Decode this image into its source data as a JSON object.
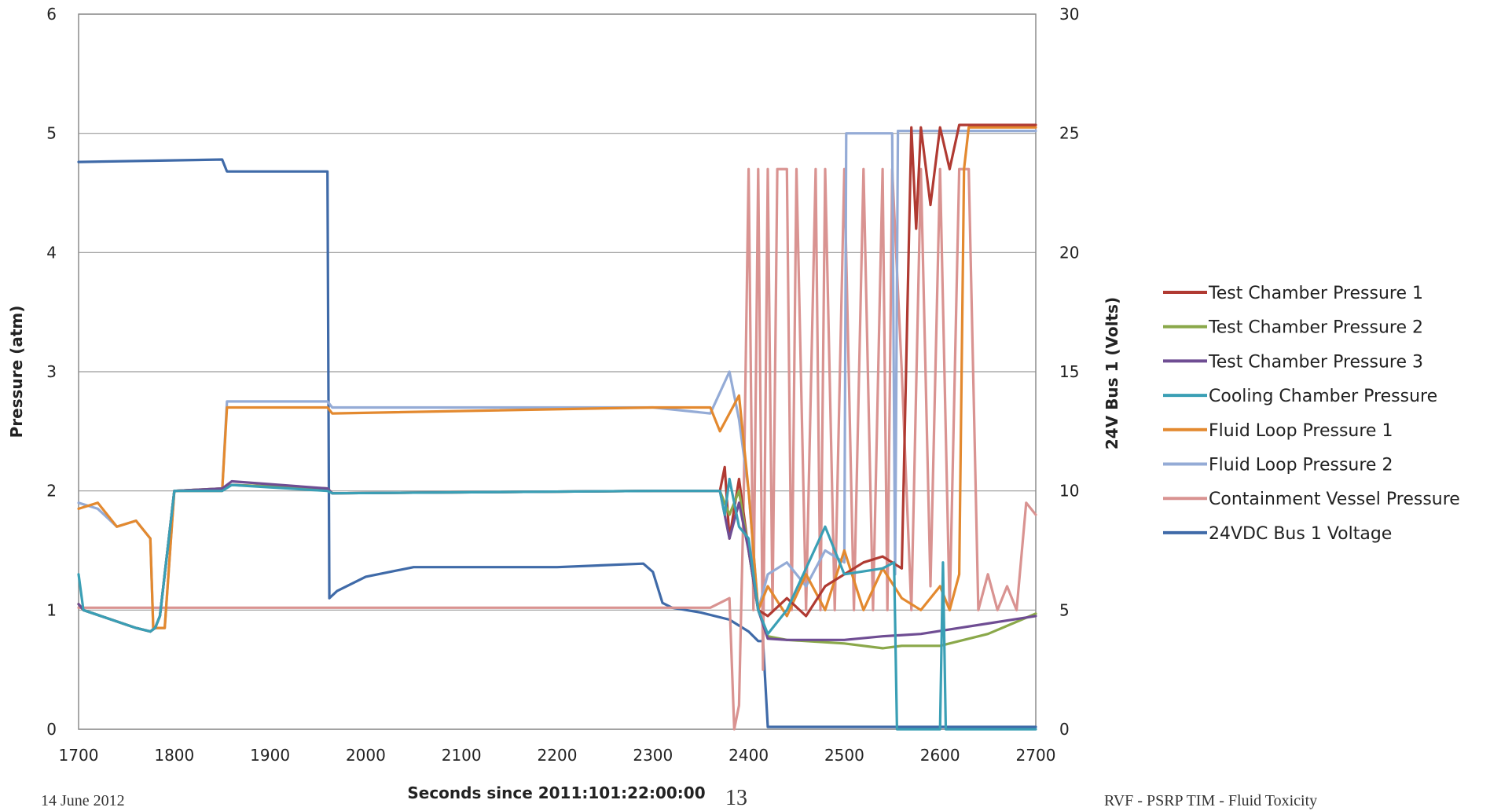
{
  "chart_data": {
    "type": "line",
    "xlabel": "Seconds since 2011:101:22:00:00",
    "ylabel": "Pressure (atm)",
    "y2label": "24V Bus 1 (Volts)",
    "xlim": [
      1700,
      2700
    ],
    "ylim": [
      0,
      6
    ],
    "y2lim": [
      0,
      30
    ],
    "xticks": [
      1700,
      1800,
      1900,
      2000,
      2100,
      2200,
      2300,
      2400,
      2500,
      2600,
      2700
    ],
    "yticks": [
      0,
      1,
      2,
      3,
      4,
      5,
      6
    ],
    "y2ticks": [
      0,
      5,
      10,
      15,
      20,
      25,
      30
    ],
    "grid": "horizontal",
    "legend_position": "right",
    "series": [
      {
        "name": "Test Chamber Pressure 1",
        "color": "#b03a32",
        "axis": "left",
        "x": [
          1700,
          1705,
          1760,
          1775,
          1780,
          1785,
          1800,
          1850,
          1860,
          1960,
          1965,
          2300,
          2370,
          2375,
          2380,
          2390,
          2400,
          2410,
          2420,
          2440,
          2460,
          2480,
          2500,
          2520,
          2540,
          2560,
          2570,
          2575,
          2580,
          2590,
          2600,
          2610,
          2620,
          2640,
          2700
        ],
        "y": [
          1.05,
          1.0,
          0.85,
          0.82,
          0.85,
          0.95,
          2.0,
          2.02,
          2.05,
          2.02,
          1.98,
          2.0,
          2.0,
          2.2,
          1.6,
          2.1,
          1.5,
          1.0,
          0.95,
          1.1,
          0.95,
          1.2,
          1.3,
          1.4,
          1.45,
          1.35,
          5.05,
          4.2,
          5.05,
          4.4,
          5.05,
          4.7,
          5.07,
          5.07,
          5.07
        ]
      },
      {
        "name": "Test Chamber Pressure 2",
        "color": "#8aa84a",
        "axis": "left",
        "x": [
          1700,
          1705,
          1760,
          1775,
          1780,
          1785,
          1800,
          1850,
          1860,
          1960,
          1965,
          2300,
          2370,
          2380,
          2390,
          2400,
          2410,
          2420,
          2440,
          2500,
          2540,
          2560,
          2600,
          2650,
          2700
        ],
        "y": [
          1.05,
          1.0,
          0.85,
          0.82,
          0.85,
          0.95,
          2.0,
          2.02,
          2.05,
          2.02,
          1.98,
          2.0,
          2.0,
          1.8,
          2.0,
          1.5,
          1.0,
          0.78,
          0.75,
          0.72,
          0.68,
          0.7,
          0.7,
          0.8,
          0.97
        ]
      },
      {
        "name": "Test Chamber Pressure 3",
        "color": "#6f4d93",
        "axis": "left",
        "x": [
          1700,
          1705,
          1760,
          1775,
          1780,
          1785,
          1800,
          1850,
          1860,
          1960,
          1965,
          2300,
          2370,
          2380,
          2390,
          2400,
          2410,
          2420,
          2440,
          2500,
          2540,
          2580,
          2620,
          2660,
          2700
        ],
        "y": [
          1.05,
          1.0,
          0.85,
          0.82,
          0.85,
          0.95,
          2.0,
          2.02,
          2.08,
          2.02,
          1.98,
          2.0,
          2.0,
          1.6,
          1.9,
          1.5,
          1.0,
          0.76,
          0.75,
          0.75,
          0.78,
          0.8,
          0.85,
          0.9,
          0.95
        ]
      },
      {
        "name": "Cooling Chamber Pressure",
        "color": "#3a9fb5",
        "axis": "left",
        "x": [
          1700,
          1705,
          1760,
          1775,
          1780,
          1785,
          1800,
          1850,
          1860,
          1960,
          1965,
          2300,
          2370,
          2375,
          2380,
          2390,
          2400,
          2410,
          2420,
          2440,
          2480,
          2500,
          2540,
          2552,
          2555,
          2560,
          2600,
          2603,
          2606,
          2610,
          2700
        ],
        "y": [
          1.3,
          1.0,
          0.85,
          0.82,
          0.85,
          0.95,
          2.0,
          2.0,
          2.05,
          2.0,
          1.98,
          2.0,
          2.0,
          1.8,
          2.1,
          1.7,
          1.6,
          1.0,
          0.8,
          1.0,
          1.7,
          1.3,
          1.35,
          1.4,
          0.0,
          0.0,
          0.0,
          1.4,
          0.0,
          0.0,
          0.0
        ]
      },
      {
        "name": "Fluid Loop Pressure 1",
        "color": "#e3892f",
        "axis": "left",
        "x": [
          1700,
          1720,
          1740,
          1760,
          1775,
          1778,
          1790,
          1800,
          1850,
          1855,
          1960,
          1965,
          2300,
          2360,
          2370,
          2390,
          2400,
          2410,
          2420,
          2440,
          2460,
          2480,
          2500,
          2520,
          2540,
          2560,
          2580,
          2600,
          2610,
          2620,
          2625,
          2630,
          2700
        ],
        "y": [
          1.85,
          1.9,
          1.7,
          1.75,
          1.6,
          0.85,
          0.85,
          2.0,
          2.0,
          2.7,
          2.7,
          2.65,
          2.7,
          2.7,
          2.5,
          2.8,
          2.0,
          1.0,
          1.2,
          0.95,
          1.3,
          1.0,
          1.5,
          1.0,
          1.35,
          1.1,
          1.0,
          1.2,
          1.0,
          1.3,
          4.7,
          5.05,
          5.05
        ]
      },
      {
        "name": "Fluid Loop Pressure 2",
        "color": "#94abd6",
        "axis": "left",
        "x": [
          1700,
          1720,
          1740,
          1760,
          1775,
          1778,
          1790,
          1800,
          1850,
          1855,
          1960,
          1965,
          2300,
          2360,
          2380,
          2390,
          2400,
          2410,
          2420,
          2440,
          2460,
          2480,
          2500,
          2502,
          2520,
          2550,
          2553,
          2556,
          2700
        ],
        "y": [
          1.9,
          1.85,
          1.7,
          1.75,
          1.6,
          0.85,
          0.85,
          2.0,
          2.0,
          2.75,
          2.75,
          2.7,
          2.7,
          2.65,
          3.0,
          2.6,
          2.0,
          1.0,
          1.3,
          1.4,
          1.2,
          1.5,
          1.4,
          5.0,
          5.0,
          5.0,
          1.3,
          5.02,
          5.02
        ]
      },
      {
        "name": "Containment Vessel Pressure",
        "color": "#d99391",
        "axis": "left",
        "x": [
          1700,
          2360,
          2380,
          2385,
          2390,
          2395,
          2400,
          2405,
          2410,
          2415,
          2420,
          2425,
          2430,
          2440,
          2445,
          2450,
          2460,
          2470,
          2475,
          2480,
          2490,
          2500,
          2510,
          2520,
          2530,
          2540,
          2545,
          2550,
          2560,
          2570,
          2580,
          2590,
          2600,
          2610,
          2620,
          2630,
          2640,
          2650,
          2660,
          2670,
          2680,
          2690,
          2700
        ],
        "y": [
          1.02,
          1.02,
          1.1,
          0.0,
          0.2,
          2.0,
          4.7,
          1.0,
          4.7,
          0.5,
          4.7,
          1.0,
          4.7,
          4.7,
          1.0,
          4.7,
          1.0,
          4.7,
          1.0,
          4.7,
          1.0,
          4.7,
          1.0,
          4.7,
          1.0,
          4.7,
          1.0,
          4.7,
          3.0,
          1.0,
          4.7,
          1.2,
          4.7,
          1.0,
          4.7,
          4.7,
          1.0,
          1.3,
          1.0,
          1.2,
          1.0,
          1.9,
          1.8
        ]
      },
      {
        "name": "24VDC Bus 1 Voltage",
        "color": "#3f6aa8",
        "axis": "right",
        "x": [
          1700,
          1850,
          1855,
          1960,
          1962,
          1970,
          2000,
          2050,
          2100,
          2200,
          2290,
          2300,
          2310,
          2320,
          2350,
          2380,
          2400,
          2410,
          2415,
          2420,
          2700
        ],
        "y": [
          23.8,
          23.9,
          23.4,
          23.4,
          5.5,
          5.8,
          6.4,
          6.8,
          6.8,
          6.8,
          6.95,
          6.6,
          5.3,
          5.1,
          4.9,
          4.6,
          4.1,
          3.7,
          3.7,
          0.1,
          0.1
        ]
      }
    ]
  },
  "footer": {
    "left": "14 June 2012",
    "page_number": "13",
    "right": "RVF - PSRP TIM - Fluid Toxicity"
  }
}
